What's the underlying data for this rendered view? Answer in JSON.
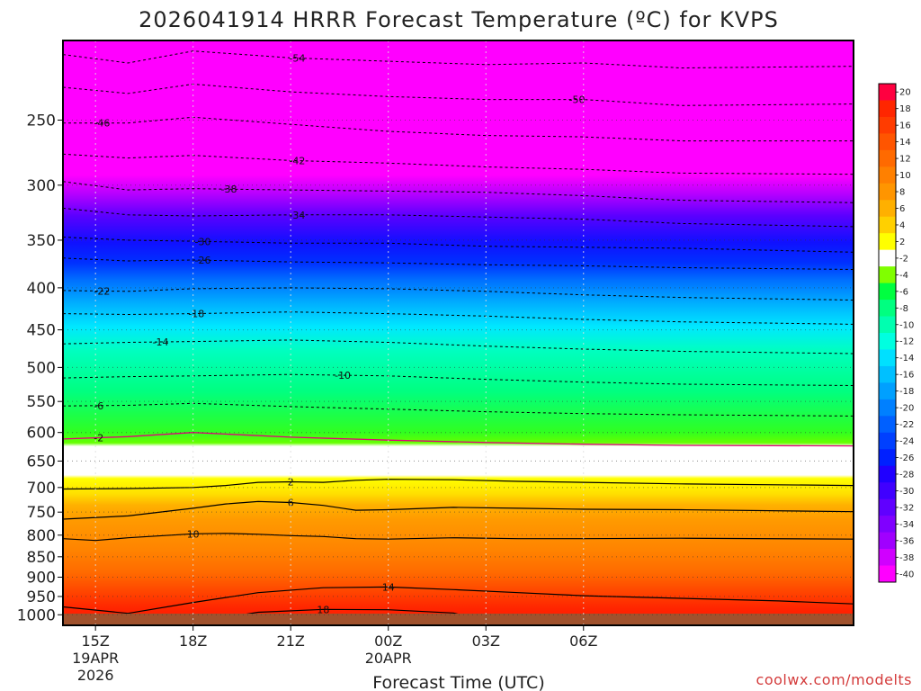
{
  "chart_data": {
    "type": "heatmap",
    "title": "2026041914 HRRR Forecast Temperature (ºC) for KVPS",
    "xlabel": "Forecast Time (UTC)",
    "credit": "coolwx.com/modelts",
    "y_axis": {
      "quantity": "pressure (hPa)",
      "range": [
        200,
        1030
      ],
      "ticks": [
        250,
        300,
        350,
        400,
        450,
        500,
        550,
        600,
        650,
        700,
        750,
        800,
        850,
        900,
        950,
        1000
      ]
    },
    "x_axis": {
      "range_hours": [
        -1.0,
        23.3
      ],
      "ticks": [
        {
          "h": 0,
          "label": "15Z",
          "sub1": "19APR",
          "sub2": "2026"
        },
        {
          "h": 3,
          "label": "18Z",
          "sub1": "",
          "sub2": ""
        },
        {
          "h": 6,
          "label": "21Z",
          "sub1": "",
          "sub2": ""
        },
        {
          "h": 9,
          "label": "00Z",
          "sub1": "20APR",
          "sub2": ""
        },
        {
          "h": 12,
          "label": "03Z",
          "sub1": "",
          "sub2": ""
        },
        {
          "h": 15,
          "label": "06Z",
          "sub1": "",
          "sub2": ""
        }
      ]
    },
    "colorbar": {
      "labels": [
        "20",
        "18",
        "16",
        "14",
        "12",
        "10",
        "8",
        "6",
        "4",
        "2",
        "-2",
        "-4",
        "-6",
        "-8",
        "-10",
        "-12",
        "-14",
        "-16",
        "-18",
        "-20",
        "-22",
        "-24",
        "-26",
        "-28",
        "-30",
        "-32",
        "-34",
        "-36",
        "-38",
        "-40"
      ],
      "colors": [
        "#ff0040",
        "#ff2600",
        "#ff3c00",
        "#ff5500",
        "#ff6a00",
        "#ff8000",
        "#ff9500",
        "#ffb000",
        "#ffd000",
        "#ffff00",
        "#ffffff",
        "#80ff00",
        "#00ff40",
        "#00ff80",
        "#00ffb0",
        "#00ffe0",
        "#00e0ff",
        "#00c0ff",
        "#00a0ff",
        "#0080ff",
        "#0060ff",
        "#0040ff",
        "#0020ff",
        "#2000ff",
        "#4000ff",
        "#6000ff",
        "#8000ff",
        "#a000ff",
        "#d000ff",
        "#ff00ff"
      ]
    },
    "contours": [
      {
        "value": -54,
        "points": [
          [
            -1,
            208
          ],
          [
            1,
            213
          ],
          [
            3,
            206
          ],
          [
            6,
            210
          ],
          [
            9,
            212
          ],
          [
            12,
            214
          ],
          [
            15,
            213
          ],
          [
            18,
            216
          ],
          [
            23.3,
            215
          ]
        ],
        "label": "-54",
        "label_h": 6.2
      },
      {
        "value": -50,
        "points": [
          [
            -1,
            228
          ],
          [
            1,
            232
          ],
          [
            3,
            226
          ],
          [
            6,
            231
          ],
          [
            9,
            234
          ],
          [
            12,
            236
          ],
          [
            15,
            236
          ],
          [
            18,
            240
          ],
          [
            23.3,
            239
          ]
        ],
        "label": "-50",
        "label_h": 14.8
      },
      {
        "value": -46,
        "points": [
          [
            -1,
            252
          ],
          [
            1,
            252
          ],
          [
            3,
            248
          ],
          [
            6,
            253
          ],
          [
            9,
            258
          ],
          [
            12,
            261
          ],
          [
            15,
            262
          ],
          [
            18,
            265
          ],
          [
            23.3,
            265
          ]
        ],
        "label": "-46",
        "label_h": 0.2
      },
      {
        "value": -42,
        "points": [
          [
            -1,
            275
          ],
          [
            1,
            278
          ],
          [
            3,
            276
          ],
          [
            6,
            280
          ],
          [
            9,
            282
          ],
          [
            12,
            285
          ],
          [
            15,
            287
          ],
          [
            18,
            290
          ],
          [
            23.3,
            291
          ]
        ],
        "label": "-42",
        "label_h": 6.2
      },
      {
        "value": -38,
        "points": [
          [
            -1,
            297
          ],
          [
            1,
            304
          ],
          [
            3,
            303
          ],
          [
            6,
            304
          ],
          [
            9,
            305
          ],
          [
            12,
            306
          ],
          [
            15,
            309
          ],
          [
            18,
            313
          ],
          [
            23.3,
            315
          ]
        ],
        "label": "-38",
        "label_h": 4.1
      },
      {
        "value": -34,
        "points": [
          [
            -1,
            320
          ],
          [
            1,
            326
          ],
          [
            3,
            327
          ],
          [
            6,
            326
          ],
          [
            9,
            326
          ],
          [
            12,
            328
          ],
          [
            15,
            330
          ],
          [
            18,
            334
          ],
          [
            23.3,
            337
          ]
        ],
        "label": "-34",
        "label_h": 6.2
      },
      {
        "value": -30,
        "points": [
          [
            -1,
            347
          ],
          [
            1,
            350
          ],
          [
            3,
            351
          ],
          [
            6,
            353
          ],
          [
            9,
            353
          ],
          [
            12,
            356
          ],
          [
            15,
            357
          ],
          [
            18,
            358
          ],
          [
            23.3,
            362
          ]
        ],
        "label": "-30",
        "label_h": 3.3
      },
      {
        "value": -26,
        "points": [
          [
            -1,
            368
          ],
          [
            1,
            371
          ],
          [
            3,
            370
          ],
          [
            6,
            372
          ],
          [
            9,
            373
          ],
          [
            12,
            375
          ],
          [
            15,
            376
          ],
          [
            18,
            378
          ],
          [
            23.3,
            380
          ]
        ],
        "label": "-26",
        "label_h": 3.3
      },
      {
        "value": -22,
        "points": [
          [
            -1,
            403
          ],
          [
            1,
            404
          ],
          [
            3,
            401
          ],
          [
            6,
            400
          ],
          [
            9,
            401
          ],
          [
            12,
            404
          ],
          [
            15,
            408
          ],
          [
            18,
            411
          ],
          [
            23.3,
            414
          ]
        ],
        "label": "-22",
        "label_h": 0.2
      },
      {
        "value": -18,
        "points": [
          [
            -1,
            430
          ],
          [
            1,
            431
          ],
          [
            3,
            430
          ],
          [
            6,
            428
          ],
          [
            9,
            430
          ],
          [
            12,
            433
          ],
          [
            15,
            437
          ],
          [
            18,
            440
          ],
          [
            23.3,
            443
          ]
        ],
        "label": "-18",
        "label_h": 3.1
      },
      {
        "value": -14,
        "points": [
          [
            -1,
            468
          ],
          [
            1,
            466
          ],
          [
            3,
            465
          ],
          [
            6,
            463
          ],
          [
            9,
            466
          ],
          [
            12,
            471
          ],
          [
            15,
            475
          ],
          [
            18,
            478
          ],
          [
            23.3,
            481
          ]
        ],
        "label": "-14",
        "label_h": 2.0
      },
      {
        "value": -10,
        "points": [
          [
            -1,
            515
          ],
          [
            1,
            513
          ],
          [
            3,
            512
          ],
          [
            6,
            510
          ],
          [
            9,
            512
          ],
          [
            12,
            517
          ],
          [
            15,
            521
          ],
          [
            18,
            524
          ],
          [
            23.3,
            526
          ]
        ],
        "label": "-10",
        "label_h": 7.6
      },
      {
        "value": -6,
        "points": [
          [
            -1,
            557
          ],
          [
            1,
            556
          ],
          [
            3,
            553
          ],
          [
            6,
            558
          ],
          [
            9,
            562
          ],
          [
            12,
            566
          ],
          [
            15,
            569
          ],
          [
            18,
            571
          ],
          [
            23.3,
            573
          ]
        ],
        "label": "-6",
        "label_h": 0.1
      },
      {
        "value": -2,
        "points": [
          [
            -1,
            611
          ],
          [
            1,
            607
          ],
          [
            3,
            600
          ],
          [
            6,
            608
          ],
          [
            9,
            613
          ],
          [
            12,
            617
          ],
          [
            15,
            620
          ],
          [
            18,
            622
          ],
          [
            23.3,
            623
          ]
        ],
        "label": "-2",
        "label_h": 0.1
      },
      {
        "value": 2,
        "points": [
          [
            -1,
            703
          ],
          [
            1,
            702
          ],
          [
            3,
            700
          ],
          [
            4,
            696
          ],
          [
            5,
            690
          ],
          [
            6,
            689
          ],
          [
            7,
            690
          ],
          [
            8,
            686
          ],
          [
            9,
            684
          ],
          [
            11,
            685
          ],
          [
            13,
            688
          ],
          [
            15,
            690
          ],
          [
            18,
            693
          ],
          [
            23.3,
            696
          ]
        ],
        "label": "2",
        "label_h": 6.0
      },
      {
        "value": 6,
        "points": [
          [
            -1,
            765
          ],
          [
            1,
            758
          ],
          [
            3,
            742
          ],
          [
            4,
            733
          ],
          [
            5,
            728
          ],
          [
            6,
            730
          ],
          [
            7,
            736
          ],
          [
            8,
            746
          ],
          [
            9,
            745
          ],
          [
            11,
            740
          ],
          [
            13,
            742
          ],
          [
            15,
            744
          ],
          [
            18,
            745
          ],
          [
            23.3,
            749
          ]
        ],
        "label": "6",
        "label_h": 6.0
      },
      {
        "value": 10,
        "points": [
          [
            -1,
            808
          ],
          [
            0,
            812
          ],
          [
            1,
            806
          ],
          [
            3,
            797
          ],
          [
            4,
            796
          ],
          [
            5,
            798
          ],
          [
            6,
            801
          ],
          [
            7,
            803
          ],
          [
            8,
            808
          ],
          [
            9,
            809
          ],
          [
            11,
            806
          ],
          [
            13,
            808
          ],
          [
            15,
            808
          ],
          [
            18,
            807
          ],
          [
            23.3,
            809
          ]
        ],
        "label": "10",
        "label_h": 3.0
      },
      {
        "value": 14,
        "points": [
          [
            -1,
            978
          ],
          [
            1,
            996
          ],
          [
            3,
            966
          ],
          [
            5,
            940
          ],
          [
            7,
            927
          ],
          [
            9,
            925
          ],
          [
            11,
            932
          ],
          [
            13,
            940
          ],
          [
            15,
            948
          ],
          [
            18,
            955
          ],
          [
            21,
            962
          ],
          [
            23.3,
            970
          ]
        ],
        "label": "14",
        "label_h": 9.0
      },
      {
        "value": 18,
        "points": [
          [
            3,
            1022
          ],
          [
            5,
            993
          ],
          [
            7,
            985
          ],
          [
            9,
            986
          ],
          [
            11,
            995
          ],
          [
            12,
            1018
          ],
          [
            11,
            1024
          ]
        ],
        "label": "18",
        "label_h": 7.0
      }
    ]
  }
}
